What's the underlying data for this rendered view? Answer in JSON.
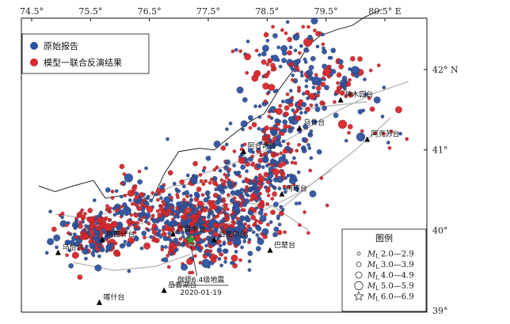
{
  "map": {
    "lon_labels": [
      "74.5°",
      "75.5°",
      "76.5°",
      "77.5°",
      "78.5°",
      "79.5°",
      "80.5° E"
    ],
    "lat_labels": [
      "42° N",
      "41°",
      "40°",
      "39°"
    ],
    "lon_values": [
      74.5,
      75.5,
      76.5,
      77.5,
      78.5,
      79.5,
      80.5
    ],
    "lat_values": [
      42,
      41,
      40,
      39
    ],
    "extent": {
      "lon_min": 74.5,
      "lon_max": 81.3,
      "lat_min": 38.9,
      "lat_max": 42.75
    }
  },
  "legend_top": {
    "items": [
      {
        "label": "原始报告",
        "color": "#2d52a0"
      },
      {
        "label": "模型一联合反演结果",
        "color": "#d9262b"
      }
    ]
  },
  "legend_mag": {
    "title": "图例",
    "items": [
      "2.0—2.9",
      "3.0—3.9",
      "4.0—4.9",
      "5.0—5.9",
      "6.0—6.9"
    ],
    "ml_label": "M",
    "ml_sub": "L"
  },
  "stations": [
    {
      "name": "乌恰台",
      "lon": 74.95,
      "lat": 39.72
    },
    {
      "name": "阿图什台",
      "lon": 75.7,
      "lat": 39.88
    },
    {
      "name": "六盘水台",
      "lon": 76.9,
      "lat": 39.95
    },
    {
      "name": "西克尔台",
      "lon": 77.6,
      "lat": 39.88
    },
    {
      "name": "巴楚台",
      "lon": 78.55,
      "lat": 39.75
    },
    {
      "name": "岳普湖台",
      "lon": 76.75,
      "lat": 39.25
    },
    {
      "name": "喀什台",
      "lon": 75.65,
      "lat": 39.1
    },
    {
      "name": "柯坪台",
      "lon": 78.75,
      "lat": 40.45
    },
    {
      "name": "阿合奇台",
      "lon": 78.1,
      "lat": 40.98
    },
    {
      "name": "乌什台",
      "lon": 79.05,
      "lat": 41.27
    },
    {
      "name": "阿克苏台",
      "lon": 80.2,
      "lat": 41.13
    },
    {
      "name": "神木园台",
      "lon": 79.75,
      "lat": 41.62
    }
  ],
  "event": {
    "title": "伽师6.4级地震",
    "date": "2020-01-19",
    "lon": 77.2,
    "lat": 39.88
  },
  "colors": {
    "original": "#2d52a0",
    "inverted": "#d9262b",
    "border": "#222222",
    "fault": "#b5b5b5",
    "star": "#3aa03a"
  }
}
